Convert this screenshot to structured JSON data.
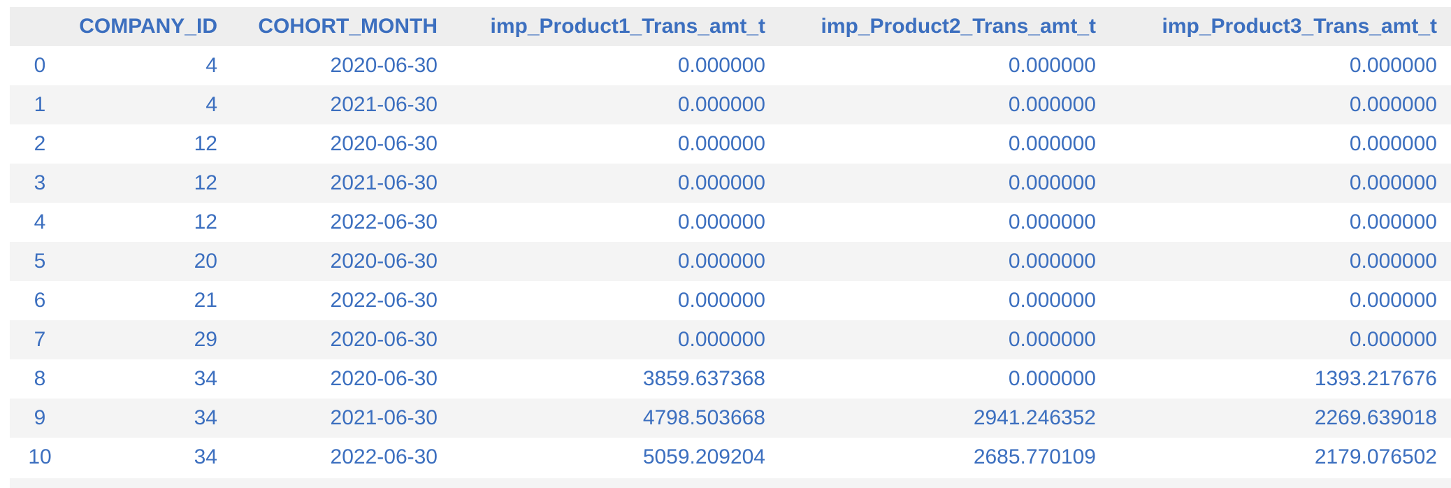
{
  "table": {
    "columns": [
      "",
      "COMPANY_ID",
      "COHORT_MONTH",
      "imp_Product1_Trans_amt_t",
      "imp_Product2_Trans_amt_t",
      "imp_Product3_Trans_amt_t"
    ],
    "rows": [
      [
        "0",
        "4",
        "2020-06-30",
        "0.000000",
        "0.000000",
        "0.000000"
      ],
      [
        "1",
        "4",
        "2021-06-30",
        "0.000000",
        "0.000000",
        "0.000000"
      ],
      [
        "2",
        "12",
        "2020-06-30",
        "0.000000",
        "0.000000",
        "0.000000"
      ],
      [
        "3",
        "12",
        "2021-06-30",
        "0.000000",
        "0.000000",
        "0.000000"
      ],
      [
        "4",
        "12",
        "2022-06-30",
        "0.000000",
        "0.000000",
        "0.000000"
      ],
      [
        "5",
        "20",
        "2020-06-30",
        "0.000000",
        "0.000000",
        "0.000000"
      ],
      [
        "6",
        "21",
        "2022-06-30",
        "0.000000",
        "0.000000",
        "0.000000"
      ],
      [
        "7",
        "29",
        "2020-06-30",
        "0.000000",
        "0.000000",
        "0.000000"
      ],
      [
        "8",
        "34",
        "2020-06-30",
        "3859.637368",
        "0.000000",
        "1393.217676"
      ],
      [
        "9",
        "34",
        "2021-06-30",
        "4798.503668",
        "2941.246352",
        "2269.639018"
      ],
      [
        "10",
        "34",
        "2022-06-30",
        "5059.209204",
        "2685.770109",
        "2179.076502"
      ]
    ]
  },
  "colors": {
    "text": "#3c6fbf",
    "header_bg": "#eeeeee",
    "row_alt_bg": "#f4f4f4"
  }
}
